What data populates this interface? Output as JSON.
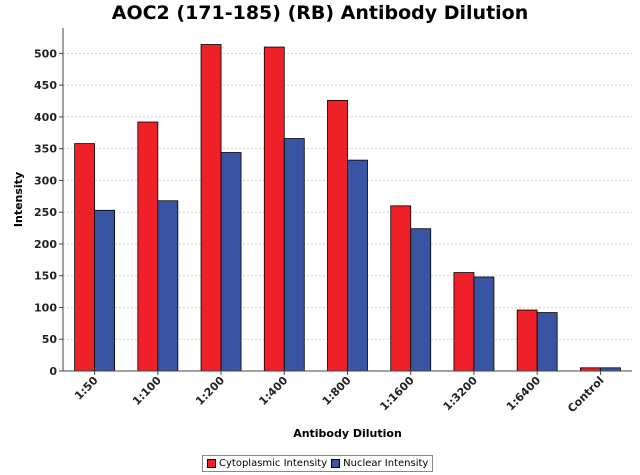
{
  "chart_data": {
    "type": "bar",
    "title": "AOC2 (171-185) (RB) Antibody Dilution",
    "xlabel": "Antibody Dilution",
    "ylabel": "Intensity",
    "ylim": [
      0,
      540
    ],
    "yticks": [
      0,
      50,
      100,
      150,
      200,
      250,
      300,
      350,
      400,
      450,
      500
    ],
    "grid": true,
    "legend_position": "bottom",
    "categories": [
      "1:50",
      "1:100",
      "1:200",
      "1:400",
      "1:800",
      "1:1600",
      "1:3200",
      "1:6400",
      "Control"
    ],
    "series": [
      {
        "name": "Cytoplasmic Intensity",
        "color": "#ee2028",
        "values": [
          358,
          392,
          514,
          510,
          426,
          260,
          155,
          96,
          5
        ]
      },
      {
        "name": "Nuclear Intensity",
        "color": "#3a54a4",
        "values": [
          253,
          268,
          344,
          366,
          332,
          224,
          148,
          92,
          5
        ]
      }
    ]
  }
}
